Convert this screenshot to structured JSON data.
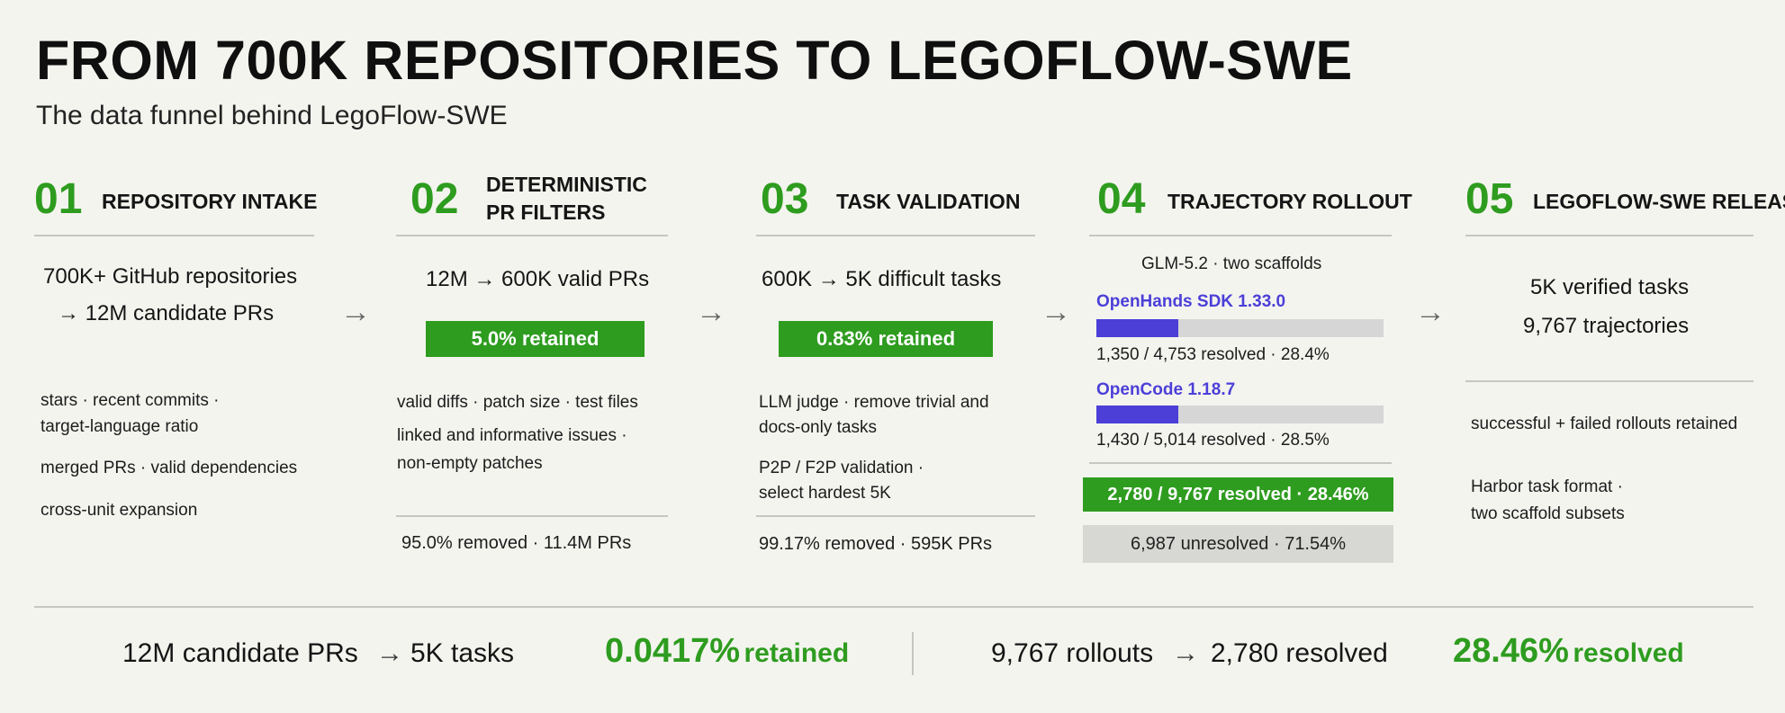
{
  "title": "FROM 700K REPOSITORIES TO LEGOFLOW-SWE",
  "subtitle": "The data funnel behind LegoFlow-SWE",
  "arrow_glyph": "→",
  "stages": [
    {
      "num": "01",
      "name": "REPOSITORY INTAKE",
      "headline_1": "700K+ GitHub repositories",
      "headline_2": "→ 12M candidate PRs",
      "criteria": [
        "stars · recent commits ·",
        "target-language ratio",
        "merged PRs · valid dependencies",
        "cross-unit expansion"
      ]
    },
    {
      "num": "02",
      "name_1": "DETERMINISTIC",
      "name_2": "PR FILTERS",
      "headline": "12M → 600K valid PRs",
      "retained": "5.0% retained",
      "criteria": [
        "valid diffs · patch size · test files",
        "linked and informative issues ·",
        "non-empty patches"
      ],
      "removed": "95.0% removed · 11.4M PRs"
    },
    {
      "num": "03",
      "name": "TASK VALIDATION",
      "headline": "600K → 5K difficult tasks",
      "retained": "0.83% retained",
      "criteria": [
        "LLM judge · remove trivial and",
        "docs-only tasks",
        "P2P / F2P validation ·",
        "select hardest 5K"
      ],
      "removed": "99.17% removed · 595K PRs"
    },
    {
      "num": "04",
      "name": "TRAJECTORY ROLLOUT",
      "model": "GLM-5.2 · two scaffolds",
      "scaffolds": [
        {
          "name": "OpenHands SDK 1.33.0",
          "resolved_fraction": 0.284,
          "stats": "1,350 / 4,753 resolved · 28.4%"
        },
        {
          "name": "OpenCode 1.18.7",
          "resolved_fraction": 0.285,
          "stats": "1,430 / 5,014 resolved · 28.5%"
        }
      ],
      "total_resolved": "2,780 / 9,767 resolved · 28.46%",
      "total_unresolved": "6,987 unresolved · 71.54%"
    },
    {
      "num": "05",
      "name": "LEGOFLOW-SWE RELEASE",
      "headline_1": "5K verified tasks",
      "headline_2": "9,767 trajectories",
      "notes": [
        "successful + failed rollouts retained",
        "Harbor task format ·",
        "two scaffold subsets"
      ]
    }
  ],
  "footer": {
    "left_from": "12M candidate PRs",
    "left_to": "5K tasks",
    "left_value": "0.0417%",
    "left_unit": "retained",
    "right_from": "9,767 rollouts",
    "right_to": "2,780 resolved",
    "right_value": "28.46%",
    "right_unit": "resolved"
  },
  "colors": {
    "accent_green": "#2e9c1f",
    "accent_purple": "#4b3fd8",
    "background": "#f4f4ef"
  }
}
